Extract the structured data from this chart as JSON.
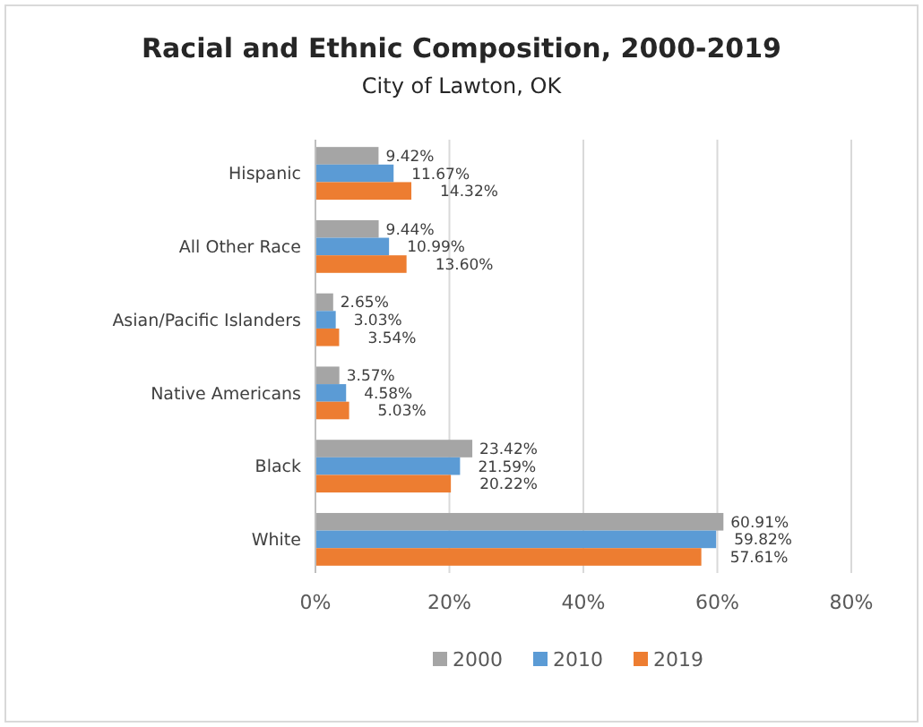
{
  "chart_data": {
    "type": "bar",
    "orientation": "horizontal",
    "title": "Racial and Ethnic Composition, 2000-2019",
    "subtitle": "City of Lawton, OK",
    "categories": [
      "Hispanic",
      "All Other Race",
      "Asian/Pacific Islanders",
      "Native Americans",
      "Black",
      "White"
    ],
    "series": [
      {
        "name": "2000",
        "color": "#a5a5a5",
        "values": [
          9.42,
          9.44,
          2.65,
          3.57,
          23.42,
          60.91
        ],
        "value_labels": [
          "9.42%",
          "9.44%",
          "2.65%",
          "3.57%",
          "23.42%",
          "60.91%"
        ]
      },
      {
        "name": "2010",
        "color": "#5b9bd5",
        "values": [
          11.67,
          10.99,
          3.03,
          4.58,
          21.59,
          59.82
        ],
        "value_labels": [
          "11.67%",
          "10.99%",
          "3.03%",
          "4.58%",
          "21.59%",
          "59.82%"
        ]
      },
      {
        "name": "2019",
        "color": "#ed7d31",
        "values": [
          14.32,
          13.6,
          3.54,
          5.03,
          20.22,
          57.61
        ],
        "value_labels": [
          "14.32%",
          "13.60%",
          "3.54%",
          "5.03%",
          "20.22%",
          "57.61%"
        ]
      }
    ],
    "xlim": [
      0,
      80
    ],
    "xticks": [
      {
        "value": 0,
        "label": "0%"
      },
      {
        "value": 20,
        "label": "20%"
      },
      {
        "value": 40,
        "label": "40%"
      },
      {
        "value": 60,
        "label": "60%"
      },
      {
        "value": 80,
        "label": "80%"
      }
    ],
    "grid": "x",
    "legend": "bottom"
  }
}
